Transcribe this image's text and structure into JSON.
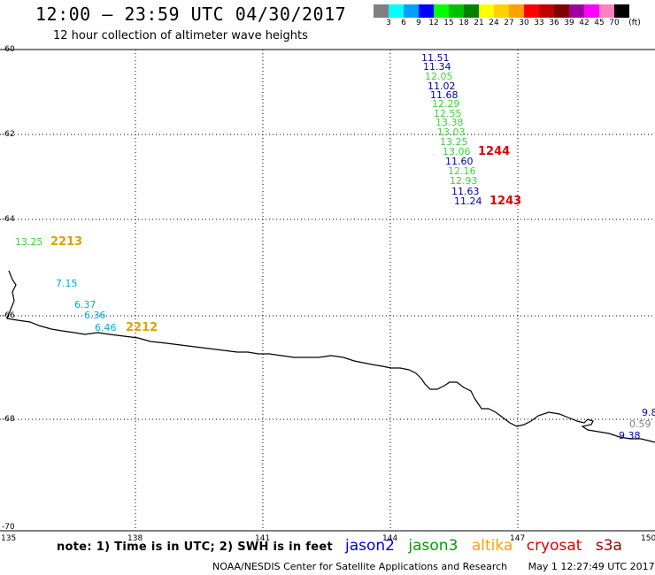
{
  "header": {
    "title": "12:00 – 23:59 UTC 04/30/2017",
    "subtitle": "12 hour collection of altimeter wave heights"
  },
  "colorbar": {
    "unit": "(ft)",
    "labels": [
      "3",
      "6",
      "9",
      "12",
      "15",
      "18",
      "21",
      "24",
      "27",
      "30",
      "33",
      "36",
      "39",
      "42",
      "45",
      "70"
    ],
    "colors": [
      "#808080",
      "#00ffff",
      "#00a0ff",
      "#0000ff",
      "#00ff00",
      "#00c000",
      "#008000",
      "#ffff00",
      "#ffd000",
      "#ffa000",
      "#ff0000",
      "#c00000",
      "#800000",
      "#a000a0",
      "#ff00ff",
      "#ff80c0",
      "#000000"
    ]
  },
  "axes": {
    "y_labels": [
      "-60",
      "-62",
      "-64",
      "-66",
      "-68",
      "-70"
    ],
    "x_labels": [
      "135",
      "138",
      "141",
      "144",
      "147",
      "150"
    ]
  },
  "series_colors": {
    "jason2": "#0000b0",
    "jason3": "#40d040",
    "altika": "#e0a000",
    "cryosat": "#e00000",
    "s3a": "#a00000",
    "cyan": "#00a8d8"
  },
  "observations": [
    {
      "value": "11.51",
      "sat": "jason2"
    },
    {
      "value": "11.34",
      "sat": "jason2"
    },
    {
      "value": "12.05",
      "sat": "jason3"
    },
    {
      "value": "11.02",
      "sat": "jason2"
    },
    {
      "value": "11.68",
      "sat": "jason2"
    },
    {
      "value": "12.29",
      "sat": "jason3"
    },
    {
      "value": "12.55",
      "sat": "jason3"
    },
    {
      "value": "13.38",
      "sat": "jason3"
    },
    {
      "value": "13.03",
      "sat": "jason3"
    },
    {
      "value": "13.25",
      "sat": "jason3"
    },
    {
      "value": "13.06",
      "sat": "jason3"
    },
    {
      "value": "11.60",
      "sat": "jason2"
    },
    {
      "value": "12.16",
      "sat": "jason3"
    },
    {
      "value": "12.93",
      "sat": "jason3"
    },
    {
      "value": "11.63",
      "sat": "jason2"
    },
    {
      "value": "11.24",
      "sat": "jason2"
    },
    {
      "value": "13.25",
      "sat": "jason3"
    },
    {
      "value": "7.15",
      "sat": "cyan"
    },
    {
      "value": "6.37",
      "sat": "cyan"
    },
    {
      "value": "6.36",
      "sat": "cyan"
    },
    {
      "value": "6.46",
      "sat": "cyan"
    },
    {
      "value": "9.8",
      "sat": "jason2"
    },
    {
      "value": "0.59",
      "sat": "grey"
    },
    {
      "value": "9.38",
      "sat": "jason2"
    }
  ],
  "pass_times": [
    {
      "value": "1244",
      "sat": "cryosat"
    },
    {
      "value": "1243",
      "sat": "cryosat"
    },
    {
      "value": "2213",
      "sat": "altika"
    },
    {
      "value": "2212",
      "sat": "altika"
    }
  ],
  "footer": {
    "note": "note:  1) Time is in UTC;  2) SWH is in feet",
    "missions": [
      {
        "name": "jason2",
        "color": "#0000e0"
      },
      {
        "name": "jason3",
        "color": "#00a000"
      },
      {
        "name": "altika",
        "color": "#ffa000"
      },
      {
        "name": "cryosat",
        "color": "#e00000"
      },
      {
        "name": "s3a",
        "color": "#a00000"
      }
    ],
    "credit": "NOAA/NESDIS Center for Satellite Applications and Research",
    "timestamp": "May  1 12:27:49 UTC 2017"
  }
}
